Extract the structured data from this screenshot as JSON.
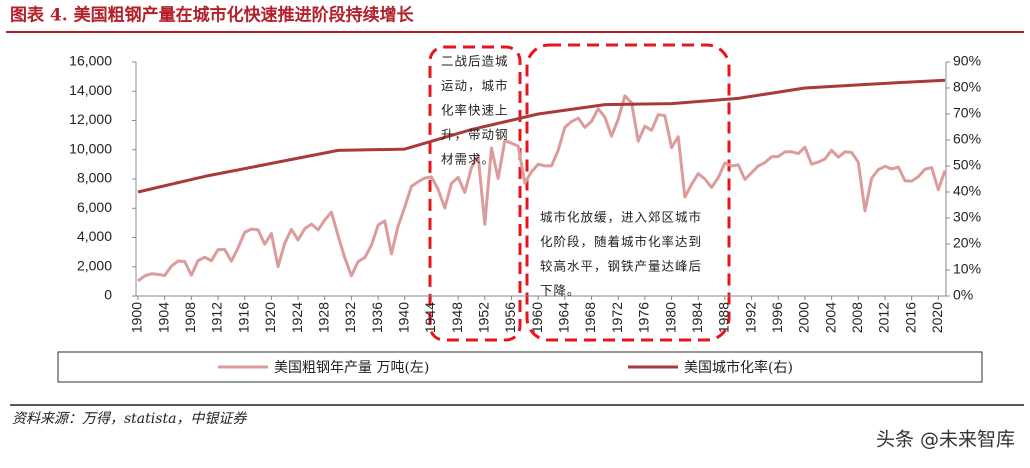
{
  "chart_data": {
    "type": "line",
    "title": "图表 4.  美国粗钢产量在城市化快速推进阶段持续增长",
    "xlim": [
      1900,
      2021
    ],
    "xticks": [
      1900,
      1904,
      1908,
      1912,
      1916,
      1920,
      1924,
      1928,
      1932,
      1936,
      1940,
      1944,
      1948,
      1952,
      1956,
      1960,
      1964,
      1968,
      1972,
      1976,
      1980,
      1984,
      1988,
      1992,
      1996,
      2000,
      2004,
      2008,
      2012,
      2016,
      2020
    ],
    "ylim": [
      0,
      16000
    ],
    "yticks": [
      0,
      {
        "value": 2000,
        "label": "2,000"
      },
      {
        "value": 4000,
        "label": "4,000"
      },
      {
        "value": 6000,
        "label": "6,000"
      },
      {
        "value": 8000,
        "label": "8,000"
      },
      {
        "value": 10000,
        "label": "10,000"
      },
      {
        "value": 12000,
        "label": "12,000"
      },
      {
        "value": 14000,
        "label": "14,000"
      },
      {
        "value": 16000,
        "label": "16,000"
      }
    ],
    "y2lim": [
      0,
      90
    ],
    "y2ticks": [
      {
        "value": 0,
        "label": "0%"
      },
      {
        "value": 10,
        "label": "10%"
      },
      {
        "value": 20,
        "label": "20%"
      },
      {
        "value": 30,
        "label": "30%"
      },
      {
        "value": 40,
        "label": "40%"
      },
      {
        "value": 50,
        "label": "50%"
      },
      {
        "value": 60,
        "label": "60%"
      },
      {
        "value": 70,
        "label": "70%"
      },
      {
        "value": 80,
        "label": "80%"
      },
      {
        "value": 90,
        "label": "90%"
      }
    ],
    "series": [
      {
        "name": "美国粗钢年产量 万吨(左)",
        "color": "#dc9c9c",
        "x": [
          1900,
          1901,
          1902,
          1903,
          1904,
          1905,
          1906,
          1907,
          1908,
          1909,
          1910,
          1911,
          1912,
          1913,
          1914,
          1915,
          1916,
          1917,
          1918,
          1919,
          1920,
          1921,
          1922,
          1923,
          1924,
          1925,
          1926,
          1927,
          1928,
          1929,
          1930,
          1931,
          1932,
          1933,
          1934,
          1935,
          1936,
          1937,
          1938,
          1939,
          1940,
          1941,
          1942,
          1943,
          1944,
          1945,
          1946,
          1947,
          1948,
          1949,
          1950,
          1951,
          1952,
          1953,
          1954,
          1955,
          1956,
          1957,
          1958,
          1959,
          1960,
          1961,
          1962,
          1963,
          1964,
          1965,
          1966,
          1967,
          1968,
          1969,
          1970,
          1971,
          1972,
          1973,
          1974,
          1975,
          1976,
          1977,
          1978,
          1979,
          1980,
          1981,
          1982,
          1983,
          1984,
          1985,
          1986,
          1987,
          1988,
          1989,
          1990,
          1991,
          1992,
          1993,
          1994,
          1995,
          1996,
          1997,
          1998,
          1999,
          2000,
          2001,
          2002,
          2003,
          2004,
          2005,
          2006,
          2007,
          2008,
          2009,
          2010,
          2011,
          2012,
          2013,
          2014,
          2015,
          2016,
          2017,
          2018,
          2019,
          2020,
          2021
        ],
        "values": [
          1035,
          1370,
          1520,
          1480,
          1400,
          2040,
          2390,
          2360,
          1420,
          2420,
          2650,
          2410,
          3170,
          3180,
          2380,
          3290,
          4350,
          4580,
          4520,
          3540,
          4270,
          2010,
          3610,
          4550,
          3830,
          4600,
          4920,
          4520,
          5200,
          5730,
          4130,
          2620,
          1380,
          2350,
          2630,
          3470,
          4850,
          5140,
          2880,
          4790,
          6080,
          7500,
          7810,
          8060,
          8140,
          7290,
          6020,
          7700,
          8110,
          7080,
          8780,
          9600,
          4900,
          10120,
          8030,
          10620,
          10450,
          10250,
          7730,
          8490,
          9010,
          8900,
          8900,
          9960,
          11530,
          11930,
          12160,
          11530,
          11940,
          12810,
          12230,
          10930,
          12090,
          13680,
          13220,
          10590,
          11610,
          11330,
          12400,
          12330,
          10150,
          10890,
          6770,
          7630,
          8370,
          8000,
          7420,
          8090,
          9090,
          8890,
          8970,
          7970,
          8430,
          8890,
          9120,
          9520,
          9540,
          9850,
          9870,
          9740,
          10180,
          9010,
          9160,
          9370,
          9970,
          9490,
          9860,
          9810,
          9140,
          5820,
          8050,
          8640,
          8870,
          8690,
          8820,
          7880,
          7850,
          8160,
          8670,
          8780,
          7270,
          8580
        ]
      },
      {
        "name": "美国城市化率(右)",
        "color": "#a83a3a",
        "axis": "y2",
        "x": [
          1900,
          1910,
          1920,
          1930,
          1940,
          1950,
          1960,
          1970,
          1980,
          1990,
          2000,
          2010,
          2021
        ],
        "values": [
          40,
          46,
          51,
          56,
          56.5,
          64,
          70,
          73.6,
          74,
          76,
          80,
          81.5,
          83
        ]
      }
    ],
    "annotations": [
      {
        "lines": [
          "二战后造城",
          "运动，城市",
          "化率快速上",
          "升，带动钢",
          "材需求。"
        ]
      },
      {
        "lines": [
          "城市化放缓，进入郊区城市",
          "化阶段，随着城市化率达到",
          "较高水平，钢铁产量达峰后",
          "下降。"
        ]
      }
    ],
    "source": "资料来源：万得，statista，中银证券",
    "watermark": "头条 @未来智库"
  }
}
